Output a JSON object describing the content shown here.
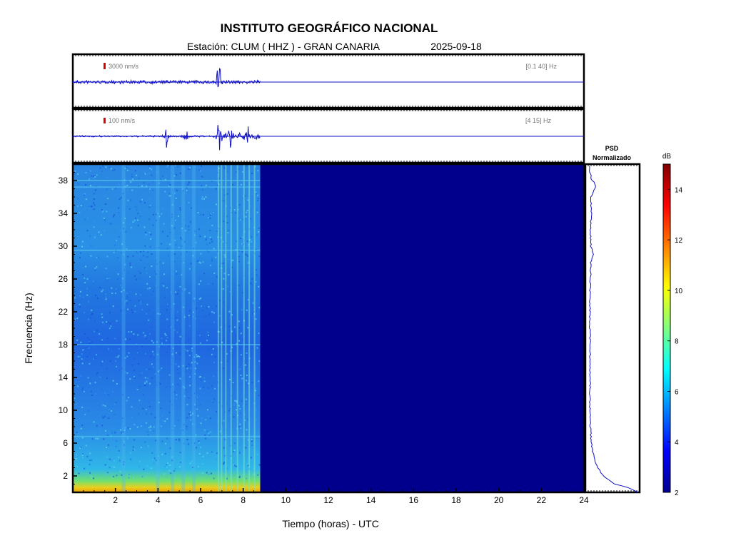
{
  "header": {
    "title": "INSTITUTO GEOGRÁFICO NACIONAL",
    "station_line": "Estación:  CLUM ( HHZ ) - GRAN CANARIA",
    "date": "2025-09-18"
  },
  "colors": {
    "trace": "#1010c8",
    "scale_marker": "#e00000",
    "background_spectrogram": "#00008c"
  },
  "chart_data": [
    {
      "type": "line",
      "name": "seismogram-broadband",
      "scale_label": "3000 nm/s",
      "filter_label": "[0.1 40] Hz",
      "x_range": [
        0,
        24
      ],
      "data_end_hour": 8.8,
      "events_hours": [
        6.8,
        6.9
      ]
    },
    {
      "type": "line",
      "name": "seismogram-filtered",
      "scale_label": "100 nm/s",
      "filter_label": "[4 15] Hz",
      "x_range": [
        0,
        24
      ],
      "data_end_hour": 8.8,
      "events_hours": [
        4.4,
        5.3,
        6.8,
        6.9,
        7.4,
        8.2
      ]
    },
    {
      "type": "heatmap",
      "name": "spectrogram",
      "xlabel": "Tiempo (horas) - UTC",
      "ylabel": "Frecuencia  (Hz)",
      "xlim": [
        0,
        24
      ],
      "ylim": [
        0,
        40
      ],
      "x_ticks": [
        2,
        4,
        6,
        8,
        10,
        12,
        14,
        16,
        18,
        20,
        22,
        24
      ],
      "y_ticks": [
        2,
        6,
        10,
        14,
        18,
        22,
        26,
        30,
        34,
        38
      ],
      "data_end_hour": 8.8,
      "colorbar": {
        "label": "dB",
        "range": [
          2,
          15
        ],
        "ticks": [
          2,
          4,
          6,
          8,
          10,
          12,
          14
        ]
      }
    },
    {
      "type": "line",
      "name": "psd-normalizado",
      "title_line1": "PSD",
      "title_line2": "Normalizado",
      "freq_hz": [
        0,
        0.5,
        1,
        2,
        3,
        4,
        5,
        6,
        8,
        10,
        12,
        14,
        16,
        18,
        20,
        22,
        24,
        26,
        28,
        29,
        30,
        32,
        34,
        36,
        37.5,
        38,
        39,
        40
      ],
      "value_norm": [
        1.0,
        0.85,
        0.55,
        0.32,
        0.22,
        0.15,
        0.11,
        0.09,
        0.07,
        0.06,
        0.06,
        0.07,
        0.06,
        0.07,
        0.06,
        0.06,
        0.06,
        0.07,
        0.08,
        0.12,
        0.08,
        0.07,
        0.09,
        0.08,
        0.18,
        0.1,
        0.06,
        0.05
      ]
    }
  ]
}
